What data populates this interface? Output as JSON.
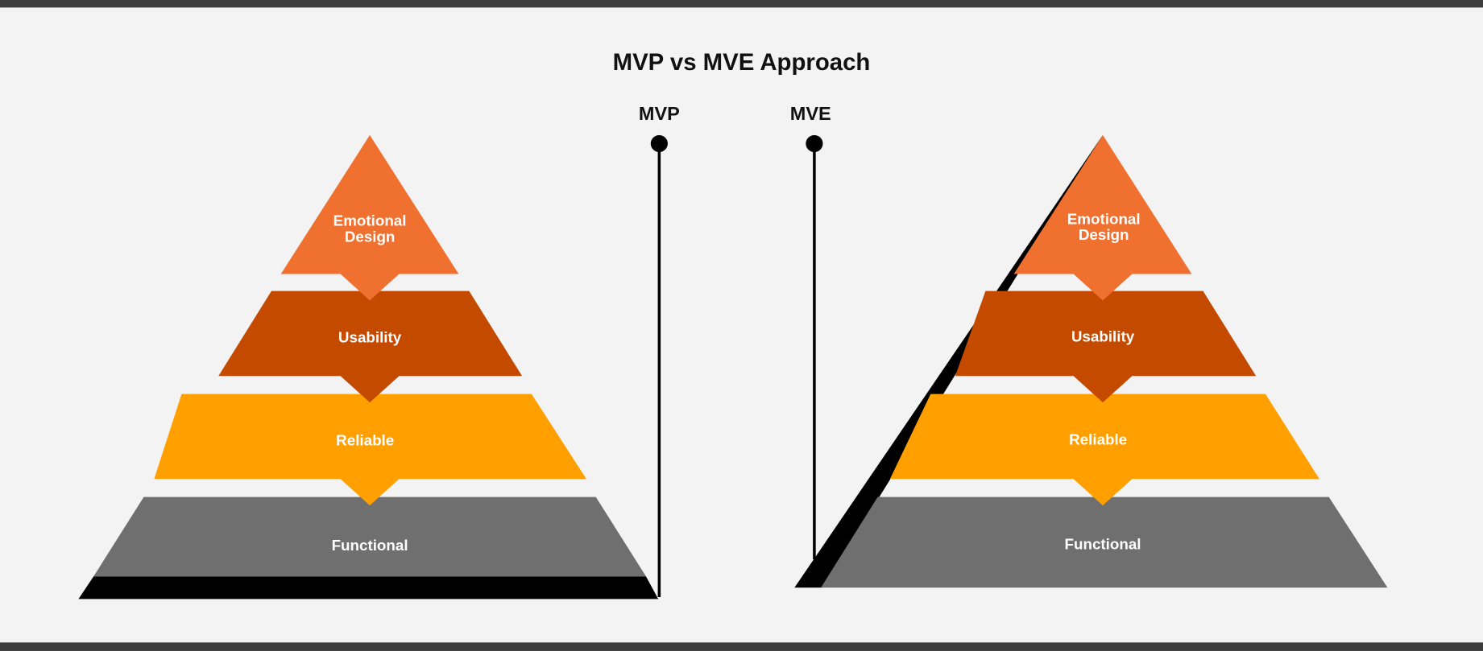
{
  "title": "MVP vs MVE Approach",
  "pyramids": [
    {
      "label": "MVP",
      "layers": [
        "Emotional Design",
        "Usability",
        "Reliable",
        "Functional"
      ]
    },
    {
      "label": "MVE",
      "layers": [
        "Emotional Design",
        "Usability",
        "Reliable",
        "Functional"
      ]
    }
  ]
}
